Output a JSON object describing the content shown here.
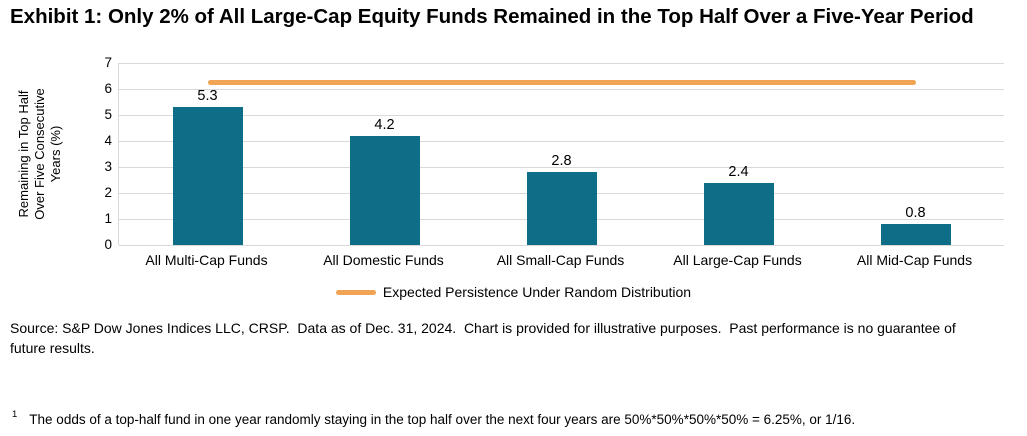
{
  "title": "Exhibit 1: Only 2% of All Large-Cap Equity Funds Remained in the Top Half Over a Five-Year Period",
  "chart_data": {
    "type": "bar",
    "categories": [
      "All Multi-Cap Funds",
      "All Domestic Funds",
      "All Small-Cap Funds",
      "All Large-Cap Funds",
      "All Mid-Cap Funds"
    ],
    "values": [
      5.3,
      4.2,
      2.8,
      2.4,
      0.8
    ],
    "value_labels": [
      "5.3",
      "4.2",
      "2.8",
      "2.4",
      "0.8"
    ],
    "ylabel": "Remaining in Top Half Over Five Consecutive Years (%)",
    "ylabel_lines": [
      "Remaining in Top Half",
      "Over Five Consecutive",
      "Years (%)"
    ],
    "ylim": [
      0,
      7
    ],
    "yticks": [
      0,
      1,
      2,
      3,
      4,
      5,
      6,
      7
    ],
    "grid": true,
    "bar_color": "#0E6E87",
    "gridline_color": "#D9D9D9",
    "reference_line": {
      "name": "Expected Persistence Under Random Distribution",
      "value": 6.25,
      "color": "#F1A454"
    },
    "legend_position": "bottom"
  },
  "source_note": "Source: S&P Dow Jones Indices LLC, CRSP.  Data as of Dec. 31, 2024.  Chart is provided for illustrative purposes.  Past performance is no guarantee of future results.",
  "footnote": {
    "marker": "1",
    "text": "The odds of a top-half fund in one year randomly staying in the top half over the next four years are 50%*50%*50%*50% = 6.25%, or 1/16."
  }
}
